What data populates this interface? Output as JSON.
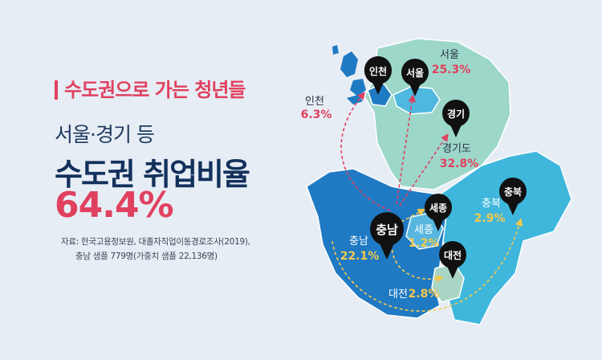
{
  "headline": {
    "kicker": "수도권으로 가는 청년들",
    "subtitle": "서울·경기 등",
    "title": "수도권 취업비율",
    "value": "64.4%"
  },
  "source": {
    "line1": "자료: 한국고용정보원, 대졸자직업이동경로조사(2019),",
    "line2": "충남 샘플 779명(가중치 샘플 22,136명)"
  },
  "origin": {
    "name": "충남",
    "label": "충남",
    "value": "22.1%"
  },
  "destinations": [
    {
      "name": "인천",
      "label": "인천",
      "value": "6.3%"
    },
    {
      "name": "서울",
      "label": "서울",
      "value": "25.3%"
    },
    {
      "name": "경기",
      "label": "경기도",
      "value": "32.8%"
    },
    {
      "name": "세종",
      "label": "세종",
      "value": "1.2%"
    },
    {
      "name": "충북",
      "label": "충북",
      "value": "2.9%"
    },
    {
      "name": "대전",
      "label": "대전",
      "value": "2.8%"
    }
  ],
  "colors": {
    "accent": "#e0415f",
    "title": "#13315c",
    "value_light": "#f5c84c",
    "chungnam": "#1f7ac3",
    "gyeonggi": "#9cd7c9",
    "seoul": "#4fb8e0",
    "chungbuk": "#3fb7dc",
    "daejeon": "#a8d5c4",
    "pin": "#111111"
  }
}
